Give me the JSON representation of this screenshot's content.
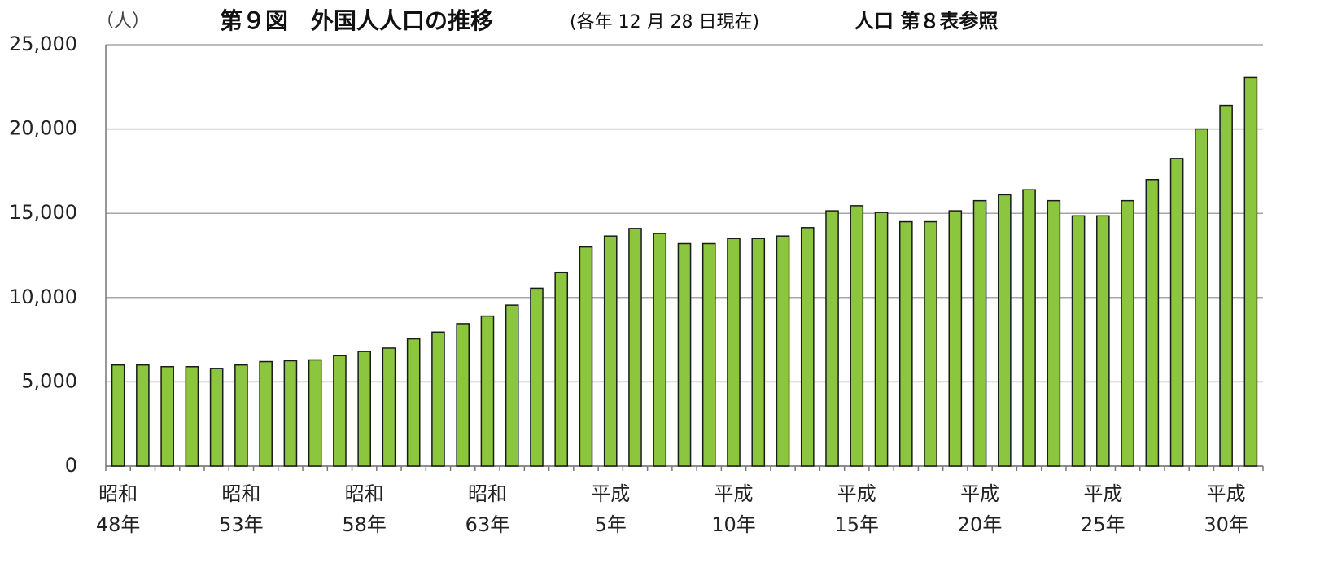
{
  "chart_data": {
    "type": "bar",
    "title": "第９図　外国人人口の推移",
    "subtitle": "(各年 12 月 28 日現在)",
    "note": "人口 第８表参照",
    "y_label": "（人）",
    "categories": [
      "昭和\n48年",
      null,
      null,
      null,
      null,
      "昭和\n53年",
      null,
      null,
      null,
      null,
      "昭和\n58年",
      null,
      null,
      null,
      null,
      "昭和\n63年",
      null,
      null,
      null,
      null,
      "平成\n5年",
      null,
      null,
      null,
      null,
      "平成\n10年",
      null,
      null,
      null,
      null,
      "平成\n15年",
      null,
      null,
      null,
      null,
      "平成\n20年",
      null,
      null,
      null,
      null,
      "平成\n25年",
      null,
      null,
      null,
      null,
      "平成\n30年",
      null
    ],
    "values": [
      6000,
      6000,
      5900,
      5900,
      5800,
      6000,
      6200,
      6250,
      6300,
      6550,
      6800,
      7000,
      7550,
      7950,
      8450,
      8900,
      9550,
      10550,
      11500,
      13000,
      13650,
      14100,
      13800,
      13200,
      13200,
      13500,
      13500,
      13650,
      14150,
      15150,
      15450,
      15050,
      14500,
      14500,
      15150,
      15750,
      16100,
      16400,
      15750,
      14850,
      14850,
      15750,
      17000,
      18250,
      20000,
      21400,
      23050
    ],
    "color": "#8cc63f",
    "ylim": [
      0,
      25000
    ],
    "yticks": [
      0,
      {
        "value": 5000,
        "label": "5,000"
      },
      {
        "value": 10000,
        "label": "10,000"
      },
      {
        "value": 15000,
        "label": "15,000"
      },
      {
        "value": 20000,
        "label": "20,000"
      },
      {
        "value": 25000,
        "label": "25,000"
      }
    ],
    "grid": true
  }
}
